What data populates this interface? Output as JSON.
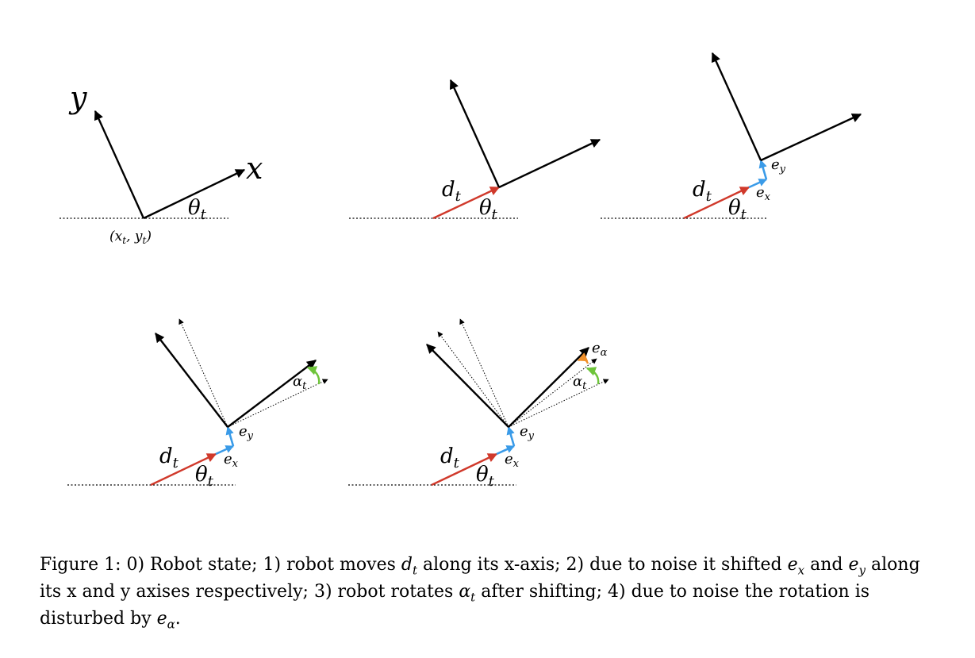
{
  "labels": {
    "x": "x",
    "y": "y",
    "theta": "θ",
    "t": "t",
    "d": "d",
    "e": "e",
    "alpha": "α",
    "sub_x": "x",
    "sub_y": "y",
    "origin": "(x",
    "origin_mid": ", y",
    "origin_end": ")"
  },
  "colors": {
    "motion": "#d0392b",
    "noise_shift": "#3a9be8",
    "rotation": "#6ec43a",
    "rotation_noise": "#f0902a",
    "axes": "#000000"
  },
  "caption": {
    "p1": "Figure 1: 0) Robot state; 1) robot moves ",
    "p2": " along its x-axis; 2) due to noise it shifted ",
    "p3": " and ",
    "p4": " along its x and y axises respectively; 3) robot rotates ",
    "p5": " after shifting; 4) due to noise the rotation is disturbed by ",
    "p6": "."
  }
}
